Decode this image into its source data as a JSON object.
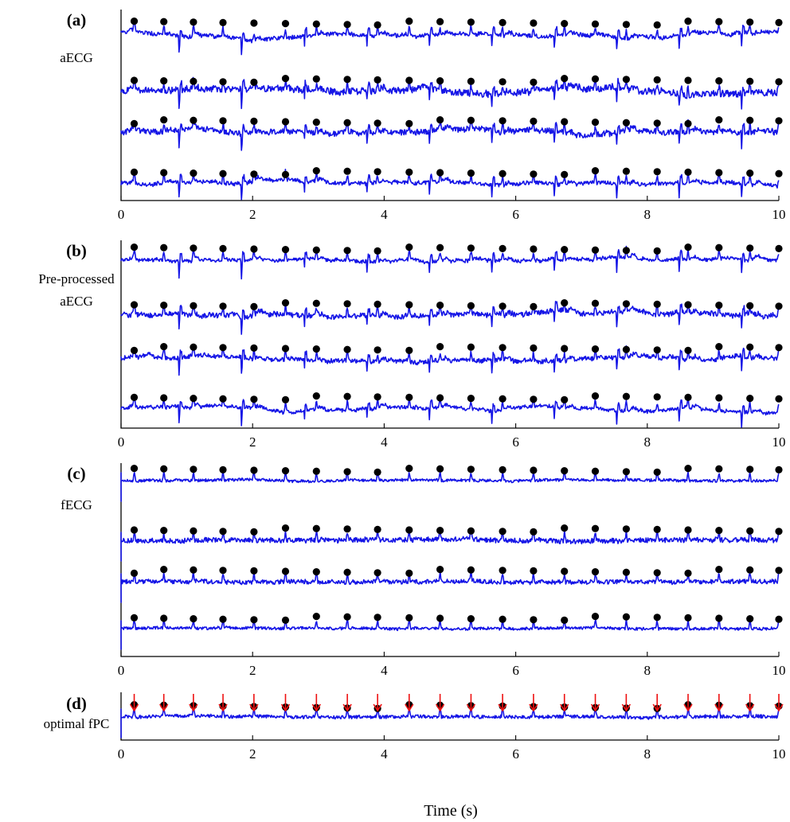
{
  "colors": {
    "signal": "#1515e6",
    "marker": "#000000",
    "arrow": "#ee1111",
    "axes": "#000000"
  },
  "chart_data": {
    "type": "line",
    "xlabel": "Time (s)",
    "xlim": [
      0,
      10
    ],
    "xticks": [
      0,
      2,
      4,
      6,
      8,
      10
    ],
    "xtick_labels": [
      "0",
      "2",
      "4",
      "6",
      "8",
      "10"
    ],
    "grid": false,
    "panels": [
      {
        "letter": "(a)",
        "label": [
          "aECG"
        ],
        "channels": 4,
        "noise_level": [
          0.35,
          0.6,
          0.5,
          0.35
        ],
        "marker_times": [
          [
            0.2,
            0.65,
            1.1,
            1.55,
            2.02,
            2.5,
            2.97,
            3.44,
            3.9,
            4.38,
            4.85,
            5.32,
            5.8,
            6.27,
            6.74,
            7.21,
            7.68,
            8.15,
            8.62,
            9.09,
            9.56,
            10.0
          ],
          [
            0.2,
            0.65,
            1.1,
            1.55,
            2.02,
            2.5,
            2.97,
            3.44,
            3.9,
            4.38,
            4.85,
            5.32,
            5.8,
            6.27,
            6.74,
            7.21,
            7.68,
            8.15,
            8.62,
            9.09,
            9.56,
            10.0
          ],
          [
            0.2,
            0.65,
            1.1,
            1.55,
            2.02,
            2.5,
            2.97,
            3.44,
            3.9,
            4.38,
            4.85,
            5.32,
            5.8,
            6.27,
            6.74,
            7.21,
            7.68,
            8.15,
            8.62,
            9.09,
            9.56,
            10.0
          ],
          [
            0.2,
            0.65,
            1.1,
            1.55,
            2.02,
            2.5,
            2.97,
            3.44,
            3.9,
            4.38,
            4.85,
            5.32,
            5.8,
            6.27,
            6.74,
            7.21,
            7.68,
            8.15,
            8.62,
            9.09,
            9.56,
            10.0
          ]
        ]
      },
      {
        "letter": "(b)",
        "label": [
          "Pre-processed",
          "aECG"
        ],
        "channels": 4,
        "noise_level": [
          0.3,
          0.45,
          0.4,
          0.3
        ],
        "marker_times": [
          [
            0.2,
            0.65,
            1.1,
            1.55,
            2.02,
            2.5,
            2.97,
            3.44,
            3.9,
            4.38,
            4.85,
            5.32,
            5.8,
            6.27,
            6.74,
            7.21,
            7.68,
            8.15,
            8.62,
            9.09,
            9.56,
            10.0
          ],
          [
            0.2,
            0.65,
            1.1,
            1.55,
            2.02,
            2.5,
            2.97,
            3.44,
            3.9,
            4.38,
            4.85,
            5.32,
            5.8,
            6.27,
            6.74,
            7.21,
            7.68,
            8.15,
            8.62,
            9.09,
            9.56,
            10.0
          ],
          [
            0.2,
            0.65,
            1.1,
            1.55,
            2.02,
            2.5,
            2.97,
            3.44,
            3.9,
            4.38,
            4.85,
            5.32,
            5.8,
            6.27,
            6.74,
            7.21,
            7.68,
            8.15,
            8.62,
            9.09,
            9.56,
            10.0
          ],
          [
            0.2,
            0.65,
            1.1,
            1.55,
            2.02,
            2.5,
            2.97,
            3.44,
            3.9,
            4.38,
            4.85,
            5.32,
            5.8,
            6.27,
            6.74,
            7.21,
            7.68,
            8.15,
            8.62,
            9.09,
            9.56,
            10.0
          ]
        ]
      },
      {
        "letter": "(c)",
        "label": [
          "fECG"
        ],
        "channels": 4,
        "noise_level": [
          0.25,
          0.45,
          0.4,
          0.25
        ],
        "marker_times": [
          [
            0.2,
            0.65,
            1.1,
            1.55,
            2.02,
            2.5,
            2.97,
            3.44,
            3.9,
            4.38,
            4.85,
            5.32,
            5.8,
            6.27,
            6.74,
            7.21,
            7.68,
            8.15,
            8.62,
            9.09,
            9.56,
            10.0
          ],
          [
            0.2,
            0.65,
            1.1,
            1.55,
            2.02,
            2.5,
            2.97,
            3.44,
            3.9,
            4.38,
            4.85,
            5.32,
            5.8,
            6.27,
            6.74,
            7.21,
            7.68,
            8.15,
            8.62,
            9.09,
            9.56,
            10.0
          ],
          [
            0.2,
            0.65,
            1.1,
            1.55,
            2.02,
            2.5,
            2.97,
            3.44,
            3.9,
            4.38,
            4.85,
            5.32,
            5.8,
            6.27,
            6.74,
            7.21,
            7.68,
            8.15,
            8.62,
            9.09,
            9.56,
            10.0
          ],
          [
            0.2,
            0.65,
            1.1,
            1.55,
            2.02,
            2.5,
            2.97,
            3.44,
            3.9,
            4.38,
            4.85,
            5.32,
            5.8,
            6.27,
            6.74,
            7.21,
            7.68,
            8.15,
            8.62,
            9.09,
            9.56,
            10.0
          ]
        ]
      },
      {
        "letter": "(d)",
        "label": [
          "optimal fPC"
        ],
        "channels": 1,
        "noise_level": [
          0.3
        ],
        "marker_times": [
          [
            0.2,
            0.65,
            1.1,
            1.55,
            2.02,
            2.5,
            2.97,
            3.44,
            3.9,
            4.38,
            4.85,
            5.32,
            5.8,
            6.27,
            6.74,
            7.21,
            7.68,
            8.15,
            8.62,
            9.09,
            9.56,
            10.0
          ]
        ],
        "arrow_times": [
          0.2,
          0.65,
          1.1,
          1.55,
          2.02,
          2.5,
          2.97,
          3.44,
          3.9,
          4.38,
          4.85,
          5.32,
          5.8,
          6.27,
          6.74,
          7.21,
          7.68,
          8.15,
          8.62,
          9.09,
          9.56,
          10.0
        ]
      }
    ]
  }
}
